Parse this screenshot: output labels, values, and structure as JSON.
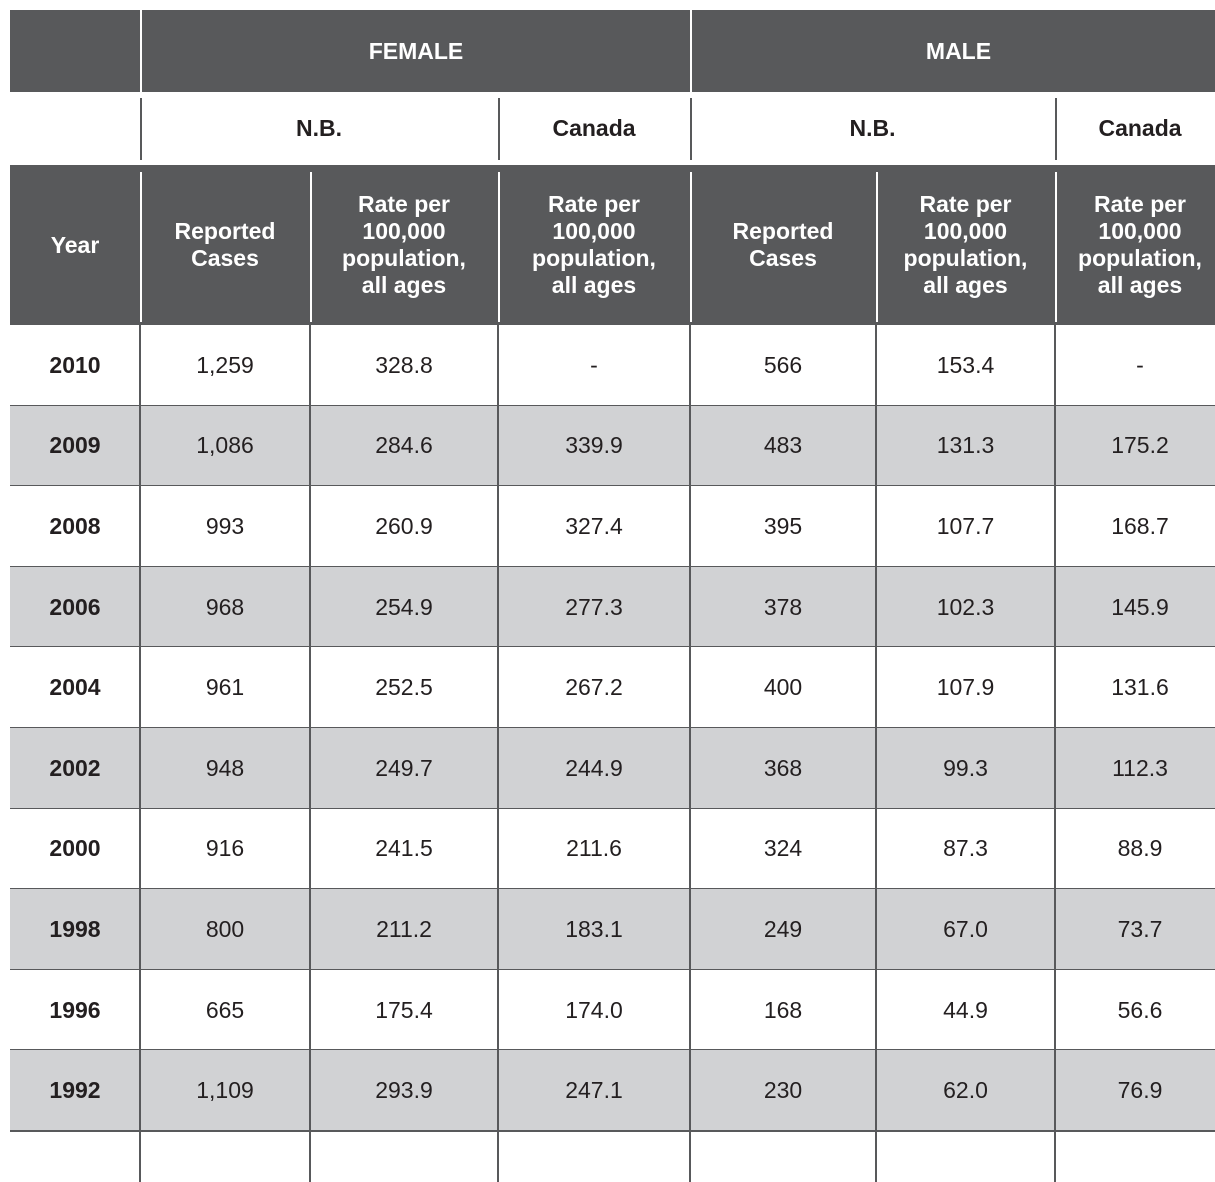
{
  "header": {
    "groups": [
      "FEMALE",
      "MALE"
    ],
    "subgroups": [
      "N.B.",
      "Canada",
      "N.B.",
      "Canada"
    ],
    "columns": [
      "Year",
      "Reported Cases",
      "Rate per 100,000 population, all ages",
      "Rate per 100,000 population, all ages",
      "Reported Cases",
      "Rate per 100,000 population, all ages",
      "Rate per 100,000 population, all ages"
    ]
  },
  "table": {
    "rows": [
      [
        "2010",
        "1,259",
        "328.8",
        "-",
        "566",
        "153.4",
        "-"
      ],
      [
        "2009",
        "1,086",
        "284.6",
        "339.9",
        "483",
        "131.3",
        "175.2"
      ],
      [
        "2008",
        "993",
        "260.9",
        "327.4",
        "395",
        "107.7",
        "168.7"
      ],
      [
        "2006",
        "968",
        "254.9",
        "277.3",
        "378",
        "102.3",
        "145.9"
      ],
      [
        "2004",
        "961",
        "252.5",
        "267.2",
        "400",
        "107.9",
        "131.6"
      ],
      [
        "2002",
        "948",
        "249.7",
        "244.9",
        "368",
        "99.3",
        "112.3"
      ],
      [
        "2000",
        "916",
        "241.5",
        "211.6",
        "324",
        "87.3",
        "88.9"
      ],
      [
        "1998",
        "800",
        "211.2",
        "183.1",
        "249",
        "67.0",
        "73.7"
      ],
      [
        "1996",
        "665",
        "175.4",
        "174.0",
        "168",
        "44.9",
        "56.6"
      ],
      [
        "1992",
        "1,109",
        "293.9",
        "247.1",
        "230",
        "62.0",
        "76.9"
      ]
    ]
  }
}
